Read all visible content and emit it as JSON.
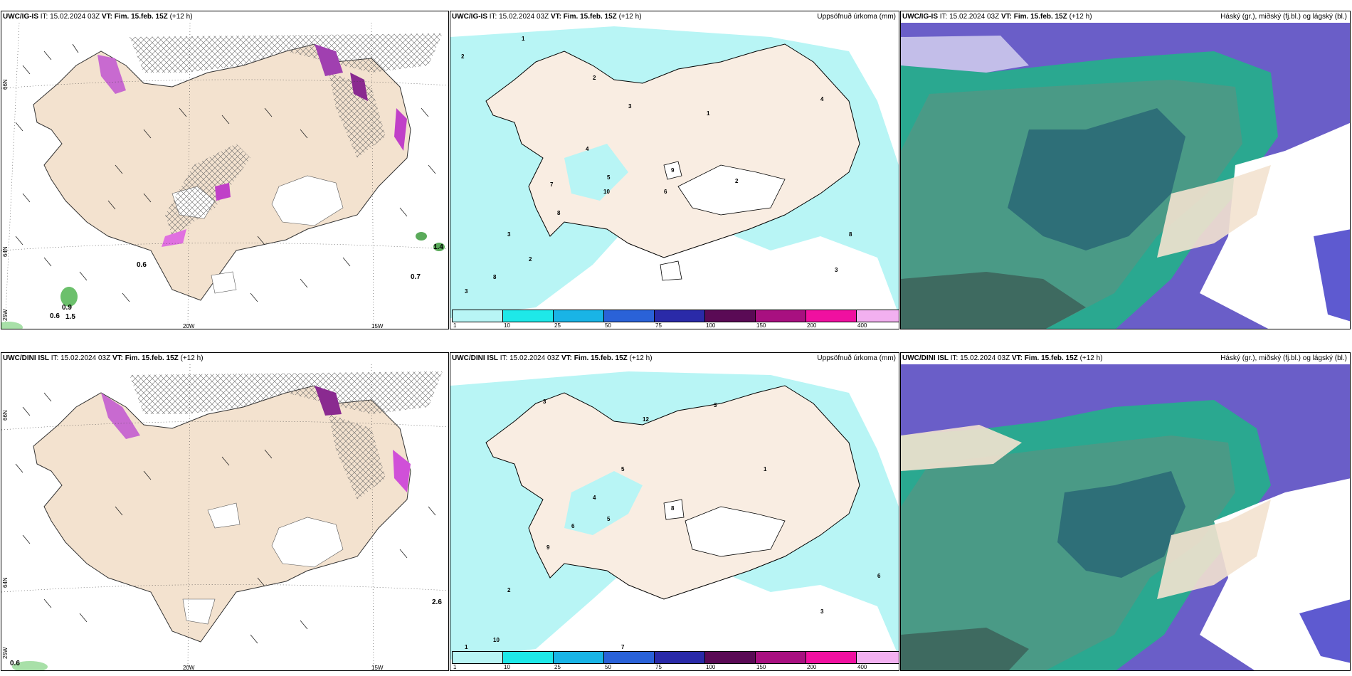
{
  "panels": {
    "p1": {
      "model": "UWC/IG-IS",
      "it_label": "IT:",
      "it": "15.02.2024 03Z",
      "vt_label": "VT:",
      "vt": "Fim. 15.feb. 15Z",
      "lead": "(+12 h)",
      "right": ""
    },
    "p2": {
      "model": "UWC/IG-IS",
      "it_label": "IT:",
      "it": "15.02.2024 03Z",
      "vt_label": "VT:",
      "vt": "Fim. 15.feb. 15Z",
      "lead": "(+12 h)",
      "right": "Uppsöfnuð úrkoma (mm)"
    },
    "p3": {
      "model": "UWC/IG-IS",
      "it_label": "IT:",
      "it": "15.02.2024 03Z",
      "vt_label": "VT:",
      "vt": "Fim. 15.feb. 15Z",
      "lead": "(+12 h)",
      "right": "Háský (gr.), miðský (fj.bl.) og lágský (bl.)"
    },
    "p4": {
      "model": "UWC/DINI ISL",
      "it_label": "IT:",
      "it": "15.02.2024 03Z",
      "vt_label": "VT:",
      "vt": "Fim. 15.feb. 15Z",
      "lead": "(+12 h)",
      "right": ""
    },
    "p5": {
      "model": "UWC/DINI ISL",
      "it_label": "IT:",
      "it": "15.02.2024 03Z",
      "vt_label": "VT:",
      "vt": "Fim. 15.feb. 15Z",
      "lead": "(+12 h)",
      "right": "Uppsöfnuð úrkoma (mm)"
    },
    "p6": {
      "model": "UWC/DINI ISL",
      "it_label": "IT:",
      "it": "15.02.2024 03Z",
      "vt_label": "VT:",
      "vt": "Fim. 15.feb. 15Z",
      "lead": "(+12 h)",
      "right": "Háský (gr.), miðský (fj.bl.) og lágský (bl.)"
    }
  },
  "axis_labels": {
    "lon20": "20W",
    "lon15": "15W",
    "lat66": "66N",
    "lat64": "64N",
    "lon25": "25W"
  },
  "legend": {
    "labels": [
      "1",
      "10",
      "25",
      "50",
      "75",
      "100",
      "150",
      "200",
      "400"
    ],
    "colors": [
      "#b8f5f5",
      "#1ee8e8",
      "#19b4e6",
      "#2a62d8",
      "#2a2aa8",
      "#5a0a55",
      "#a81080",
      "#f010a0",
      "#f2b0f0"
    ]
  },
  "wind_values_top": [
    "0.6",
    "0.9",
    "0.6",
    "1.5",
    "0.7",
    "1.4"
  ],
  "wind_values_bottom": [
    "0.6",
    "2.6"
  ],
  "precip_values_top": [
    "2",
    "1",
    "3",
    "4",
    "5",
    "7",
    "8",
    "10",
    "6",
    "9"
  ],
  "precip_values_bottom": [
    "2",
    "1",
    "3",
    "4",
    "5",
    "6",
    "7",
    "8",
    "9",
    "10",
    "12"
  ],
  "colors": {
    "land": "#f3e2cf",
    "ice": "#ffffff",
    "precip_light": "#b8f5f5",
    "cloud_high": "#6a5ec8",
    "cloud_mid": "#2aa890",
    "cloud_low": "#2e6f78"
  }
}
